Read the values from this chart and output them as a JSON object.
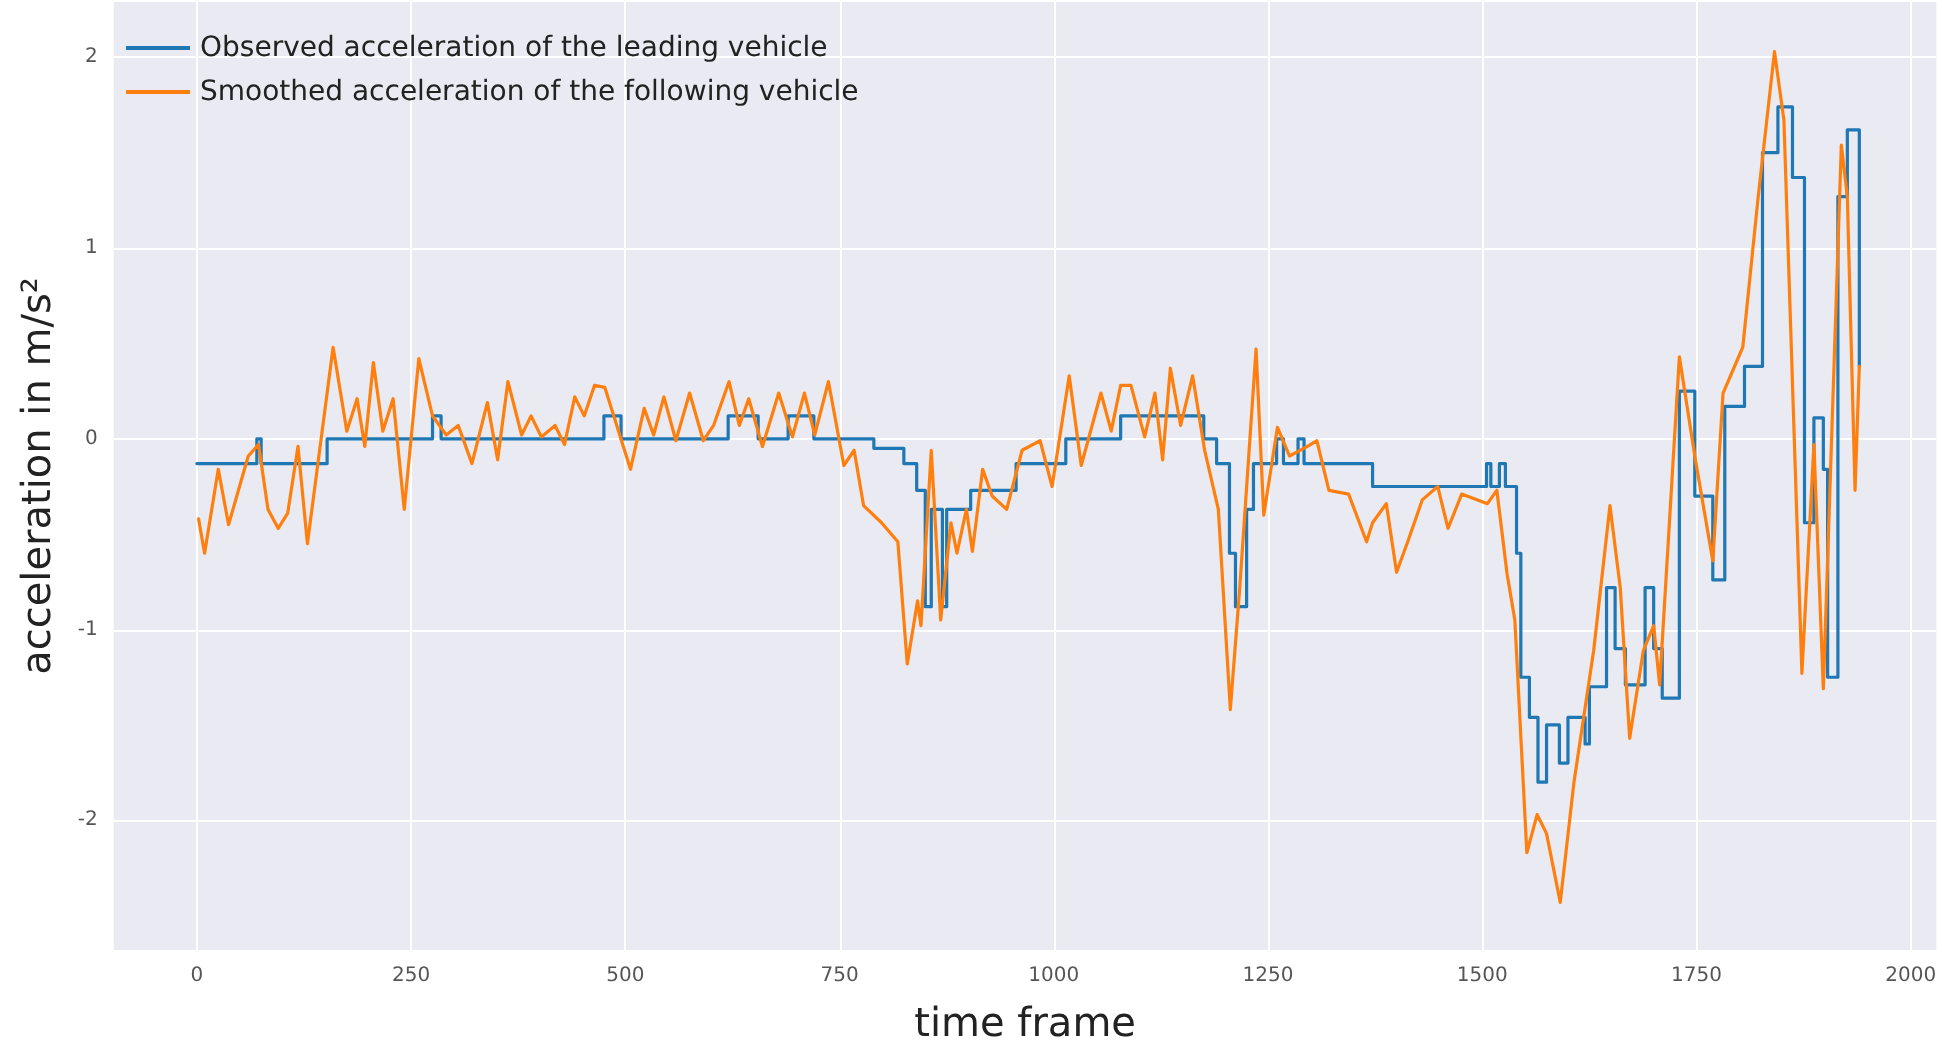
{
  "chart_data": {
    "type": "line",
    "xlabel": "time frame",
    "ylabel": "acceleration in m/s²",
    "xlim": [
      -97,
      2030
    ],
    "xticks": [
      0,
      250,
      500,
      750,
      1000,
      1250,
      1500,
      1750,
      2000
    ],
    "ylim": [
      -2.68,
      2.29
    ],
    "yticks": [
      -2,
      -1,
      0,
      1,
      2
    ],
    "grid": true,
    "legend": "top left",
    "marker": "none",
    "line_style": "solid",
    "series": [
      {
        "name": "Observed acceleration of the leading vehicle",
        "type": "step",
        "color": "#1f77b4",
        "x": [
          0,
          70,
          75,
          152,
          275,
          285,
          475,
          495,
          620,
          655,
          690,
          720,
          790,
          825,
          840,
          850,
          857,
          870,
          875,
          903,
          956,
          1014,
          1078,
          1175,
          1190,
          1205,
          1212,
          1225,
          1233,
          1260,
          1268,
          1285,
          1292,
          1372,
          1505,
          1510,
          1520,
          1527,
          1540,
          1545,
          1555,
          1565,
          1575,
          1590,
          1600,
          1620,
          1625,
          1645,
          1655,
          1667,
          1690,
          1700,
          1710,
          1730,
          1748,
          1769,
          1783,
          1806,
          1827,
          1845,
          1862,
          1876,
          1887,
          1898,
          1903,
          1915,
          1926,
          1940
        ],
        "values": [
          -0.13,
          0.0,
          -0.13,
          0.0,
          0.12,
          0.0,
          0.12,
          0.0,
          0.12,
          0.0,
          0.12,
          0.0,
          -0.05,
          -0.13,
          -0.27,
          -0.88,
          -0.37,
          -0.88,
          -0.37,
          -0.27,
          -0.13,
          0.0,
          0.12,
          0.0,
          -0.13,
          -0.6,
          -0.88,
          -0.37,
          -0.13,
          0.0,
          -0.13,
          0.0,
          -0.13,
          -0.25,
          -0.13,
          -0.25,
          -0.13,
          -0.25,
          -0.6,
          -1.25,
          -1.46,
          -1.8,
          -1.5,
          -1.7,
          -1.46,
          -1.6,
          -1.3,
          -0.78,
          -1.1,
          -1.29,
          -0.78,
          -1.1,
          -1.36,
          0.25,
          -0.3,
          -0.74,
          0.17,
          0.38,
          1.5,
          1.74,
          1.37,
          -0.44,
          0.11,
          -0.16,
          -1.25,
          1.27,
          1.62,
          0.38
        ]
      },
      {
        "name": "Smoothed acceleration of the following vehicle",
        "color": "#ff7f0e",
        "x": [
          2,
          9,
          25,
          37,
          60,
          72,
          83,
          95,
          106,
          118,
          129,
          159,
          175,
          187,
          196,
          206,
          217,
          229,
          242,
          259,
          275,
          291,
          305,
          321,
          339,
          351,
          363,
          379,
          390,
          402,
          418,
          429,
          441,
          452,
          464,
          476,
          490,
          506,
          522,
          533,
          545,
          559,
          575,
          591,
          603,
          621,
          633,
          644,
          660,
          679,
          695,
          709,
          721,
          737,
          755,
          767,
          778,
          799,
          818,
          829,
          841,
          845,
          857,
          868,
          880,
          887,
          898,
          905,
          917,
          928,
          945,
          963,
          984,
          998,
          1018,
          1032,
          1055,
          1067,
          1078,
          1090,
          1106,
          1118,
          1127,
          1136,
          1148,
          1162,
          1176,
          1192,
          1206,
          1217,
          1236,
          1245,
          1261,
          1275,
          1296,
          1307,
          1321,
          1344,
          1365,
          1372,
          1388,
          1400,
          1413,
          1430,
          1448,
          1460,
          1476,
          1506,
          1517,
          1529,
          1538,
          1552,
          1564,
          1575,
          1591,
          1607,
          1630,
          1649,
          1661,
          1672,
          1688,
          1700,
          1707,
          1730,
          1748,
          1769,
          1781,
          1804,
          1822,
          1841,
          1852,
          1873,
          1887,
          1898,
          1919,
          1926,
          1935,
          1940
        ],
        "values": [
          -0.42,
          -0.6,
          -0.16,
          -0.45,
          -0.09,
          -0.03,
          -0.37,
          -0.47,
          -0.39,
          -0.04,
          -0.55,
          0.48,
          0.04,
          0.21,
          -0.04,
          0.4,
          0.04,
          0.21,
          -0.37,
          0.42,
          0.12,
          0.02,
          0.07,
          -0.13,
          0.19,
          -0.11,
          0.3,
          0.02,
          0.12,
          0.01,
          0.07,
          -0.03,
          0.22,
          0.12,
          0.28,
          0.27,
          0.07,
          -0.16,
          0.16,
          0.02,
          0.22,
          -0.01,
          0.24,
          -0.01,
          0.07,
          0.3,
          0.07,
          0.21,
          -0.04,
          0.24,
          0.01,
          0.24,
          0.02,
          0.3,
          -0.14,
          -0.06,
          -0.35,
          -0.44,
          -0.54,
          -1.18,
          -0.85,
          -0.98,
          -0.06,
          -0.95,
          -0.44,
          -0.6,
          -0.37,
          -0.59,
          -0.16,
          -0.3,
          -0.37,
          -0.06,
          -0.01,
          -0.25,
          0.33,
          -0.14,
          0.24,
          0.04,
          0.28,
          0.28,
          0.01,
          0.24,
          -0.11,
          0.37,
          0.07,
          0.33,
          -0.06,
          -0.37,
          -1.42,
          -0.78,
          0.47,
          -0.4,
          0.06,
          -0.09,
          -0.04,
          -0.01,
          -0.27,
          -0.29,
          -0.54,
          -0.44,
          -0.34,
          -0.7,
          -0.54,
          -0.32,
          -0.25,
          -0.47,
          -0.29,
          -0.34,
          -0.27,
          -0.71,
          -0.95,
          -2.17,
          -1.97,
          -2.07,
          -2.43,
          -1.8,
          -1.11,
          -0.35,
          -0.78,
          -1.57,
          -1.11,
          -0.98,
          -1.29,
          0.43,
          -0.09,
          -0.64,
          0.24,
          0.48,
          1.27,
          2.03,
          1.67,
          -1.23,
          -0.03,
          -1.31,
          1.54,
          1.27,
          -0.27,
          0.38
        ]
      }
    ]
  }
}
